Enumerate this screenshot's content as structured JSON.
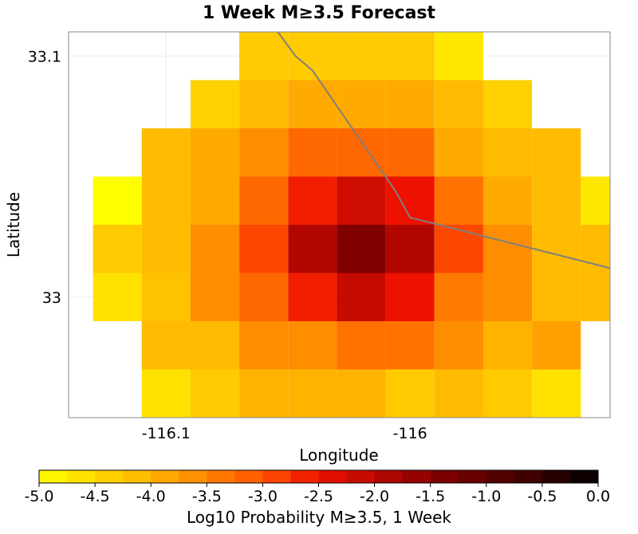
{
  "chart_data": {
    "type": "heatmap",
    "title": "1 Week M≥3.5 Forecast",
    "xlabel": "Longitude",
    "ylabel": "Latitude",
    "xlim": [
      -116.14,
      -115.918
    ],
    "ylim": [
      32.95,
      33.11
    ],
    "x_ticks": [
      -116.1,
      -116
    ],
    "x_tick_labels": [
      "-116.1",
      "-116"
    ],
    "y_ticks": [
      33,
      33.1
    ],
    "y_tick_labels": [
      "33",
      "33.1"
    ],
    "grid": true,
    "cell_size_deg": [
      0.02,
      0.02
    ],
    "cells": {
      "lon": [
        -116.12,
        -116.1,
        -116.08,
        -116.06,
        -116.04,
        -116.02,
        -116.0,
        -115.98,
        -115.96,
        -115.94,
        -115.92
      ],
      "lat": [
        33.1,
        33.08,
        33.06,
        33.04,
        33.02,
        33.0,
        32.98,
        32.96,
        32.94
      ],
      "values": [
        [
          null,
          null,
          null,
          -4.3,
          -4.3,
          -4.3,
          -4.3,
          -4.7,
          null,
          null,
          null
        ],
        [
          null,
          null,
          -4.4,
          -4.1,
          -3.9,
          -3.9,
          -3.9,
          -4.1,
          -4.4,
          null,
          null
        ],
        [
          null,
          -4.1,
          -3.9,
          -3.6,
          -3.2,
          -3.2,
          -3.2,
          -3.9,
          -4.1,
          -4.1,
          null
        ],
        [
          -5.0,
          -4.1,
          -3.9,
          -3.2,
          -2.6,
          -2.2,
          -2.5,
          -3.3,
          -3.9,
          -4.1,
          -4.7
        ],
        [
          -4.3,
          -4.1,
          -3.6,
          -2.9,
          -1.9,
          -1.4,
          -1.9,
          -2.9,
          -3.6,
          -4.1,
          -4.1
        ],
        [
          -4.6,
          -4.2,
          -3.6,
          -3.2,
          -2.6,
          -2.1,
          -2.5,
          -3.4,
          -3.6,
          -4.1,
          -4.1
        ],
        [
          null,
          -4.1,
          -4.1,
          -3.6,
          -3.6,
          -3.3,
          -3.3,
          -3.6,
          -4.0,
          -3.8,
          null
        ],
        [
          null,
          -4.6,
          -4.3,
          -4.0,
          -4.0,
          -4.0,
          -4.3,
          -4.1,
          -4.3,
          -4.6,
          null
        ],
        [
          null,
          null,
          null,
          -4.4,
          -4.3,
          -4.3,
          -4.4,
          -4.4,
          null,
          null,
          null
        ]
      ]
    },
    "fault_trace": {
      "lon": [
        -116.06,
        -116.047,
        -116.04,
        -116.021,
        -116.006,
        -116.0,
        -115.918
      ],
      "lat": [
        33.118,
        33.1,
        33.094,
        33.066,
        33.044,
        33.033,
        33.012
      ]
    },
    "fault_color": "#7f7f7f",
    "colorbar": {
      "label": "Log10 Probability M≥3.5, 1 Week",
      "range": [
        -5.0,
        0.0
      ],
      "ticks": [
        -5.0,
        -4.5,
        -4.0,
        -3.5,
        -3.0,
        -2.5,
        -2.0,
        -1.5,
        -1.0,
        -0.5,
        0.0
      ],
      "tick_labels": [
        "-5.0",
        "-4.5",
        "-4.0",
        "-3.5",
        "-3.0",
        "-2.5",
        "-2.0",
        "-1.5",
        "-1.0",
        "-0.5",
        "0.0"
      ],
      "segments": 20,
      "color_stops": [
        [
          -5.0,
          "#ffff00"
        ],
        [
          -4.0,
          "#ffb300"
        ],
        [
          -3.0,
          "#ff5500"
        ],
        [
          -2.5,
          "#ee1100"
        ],
        [
          -1.5,
          "#880000"
        ],
        [
          -0.5,
          "#330000"
        ],
        [
          0.0,
          "#000000"
        ]
      ]
    }
  }
}
